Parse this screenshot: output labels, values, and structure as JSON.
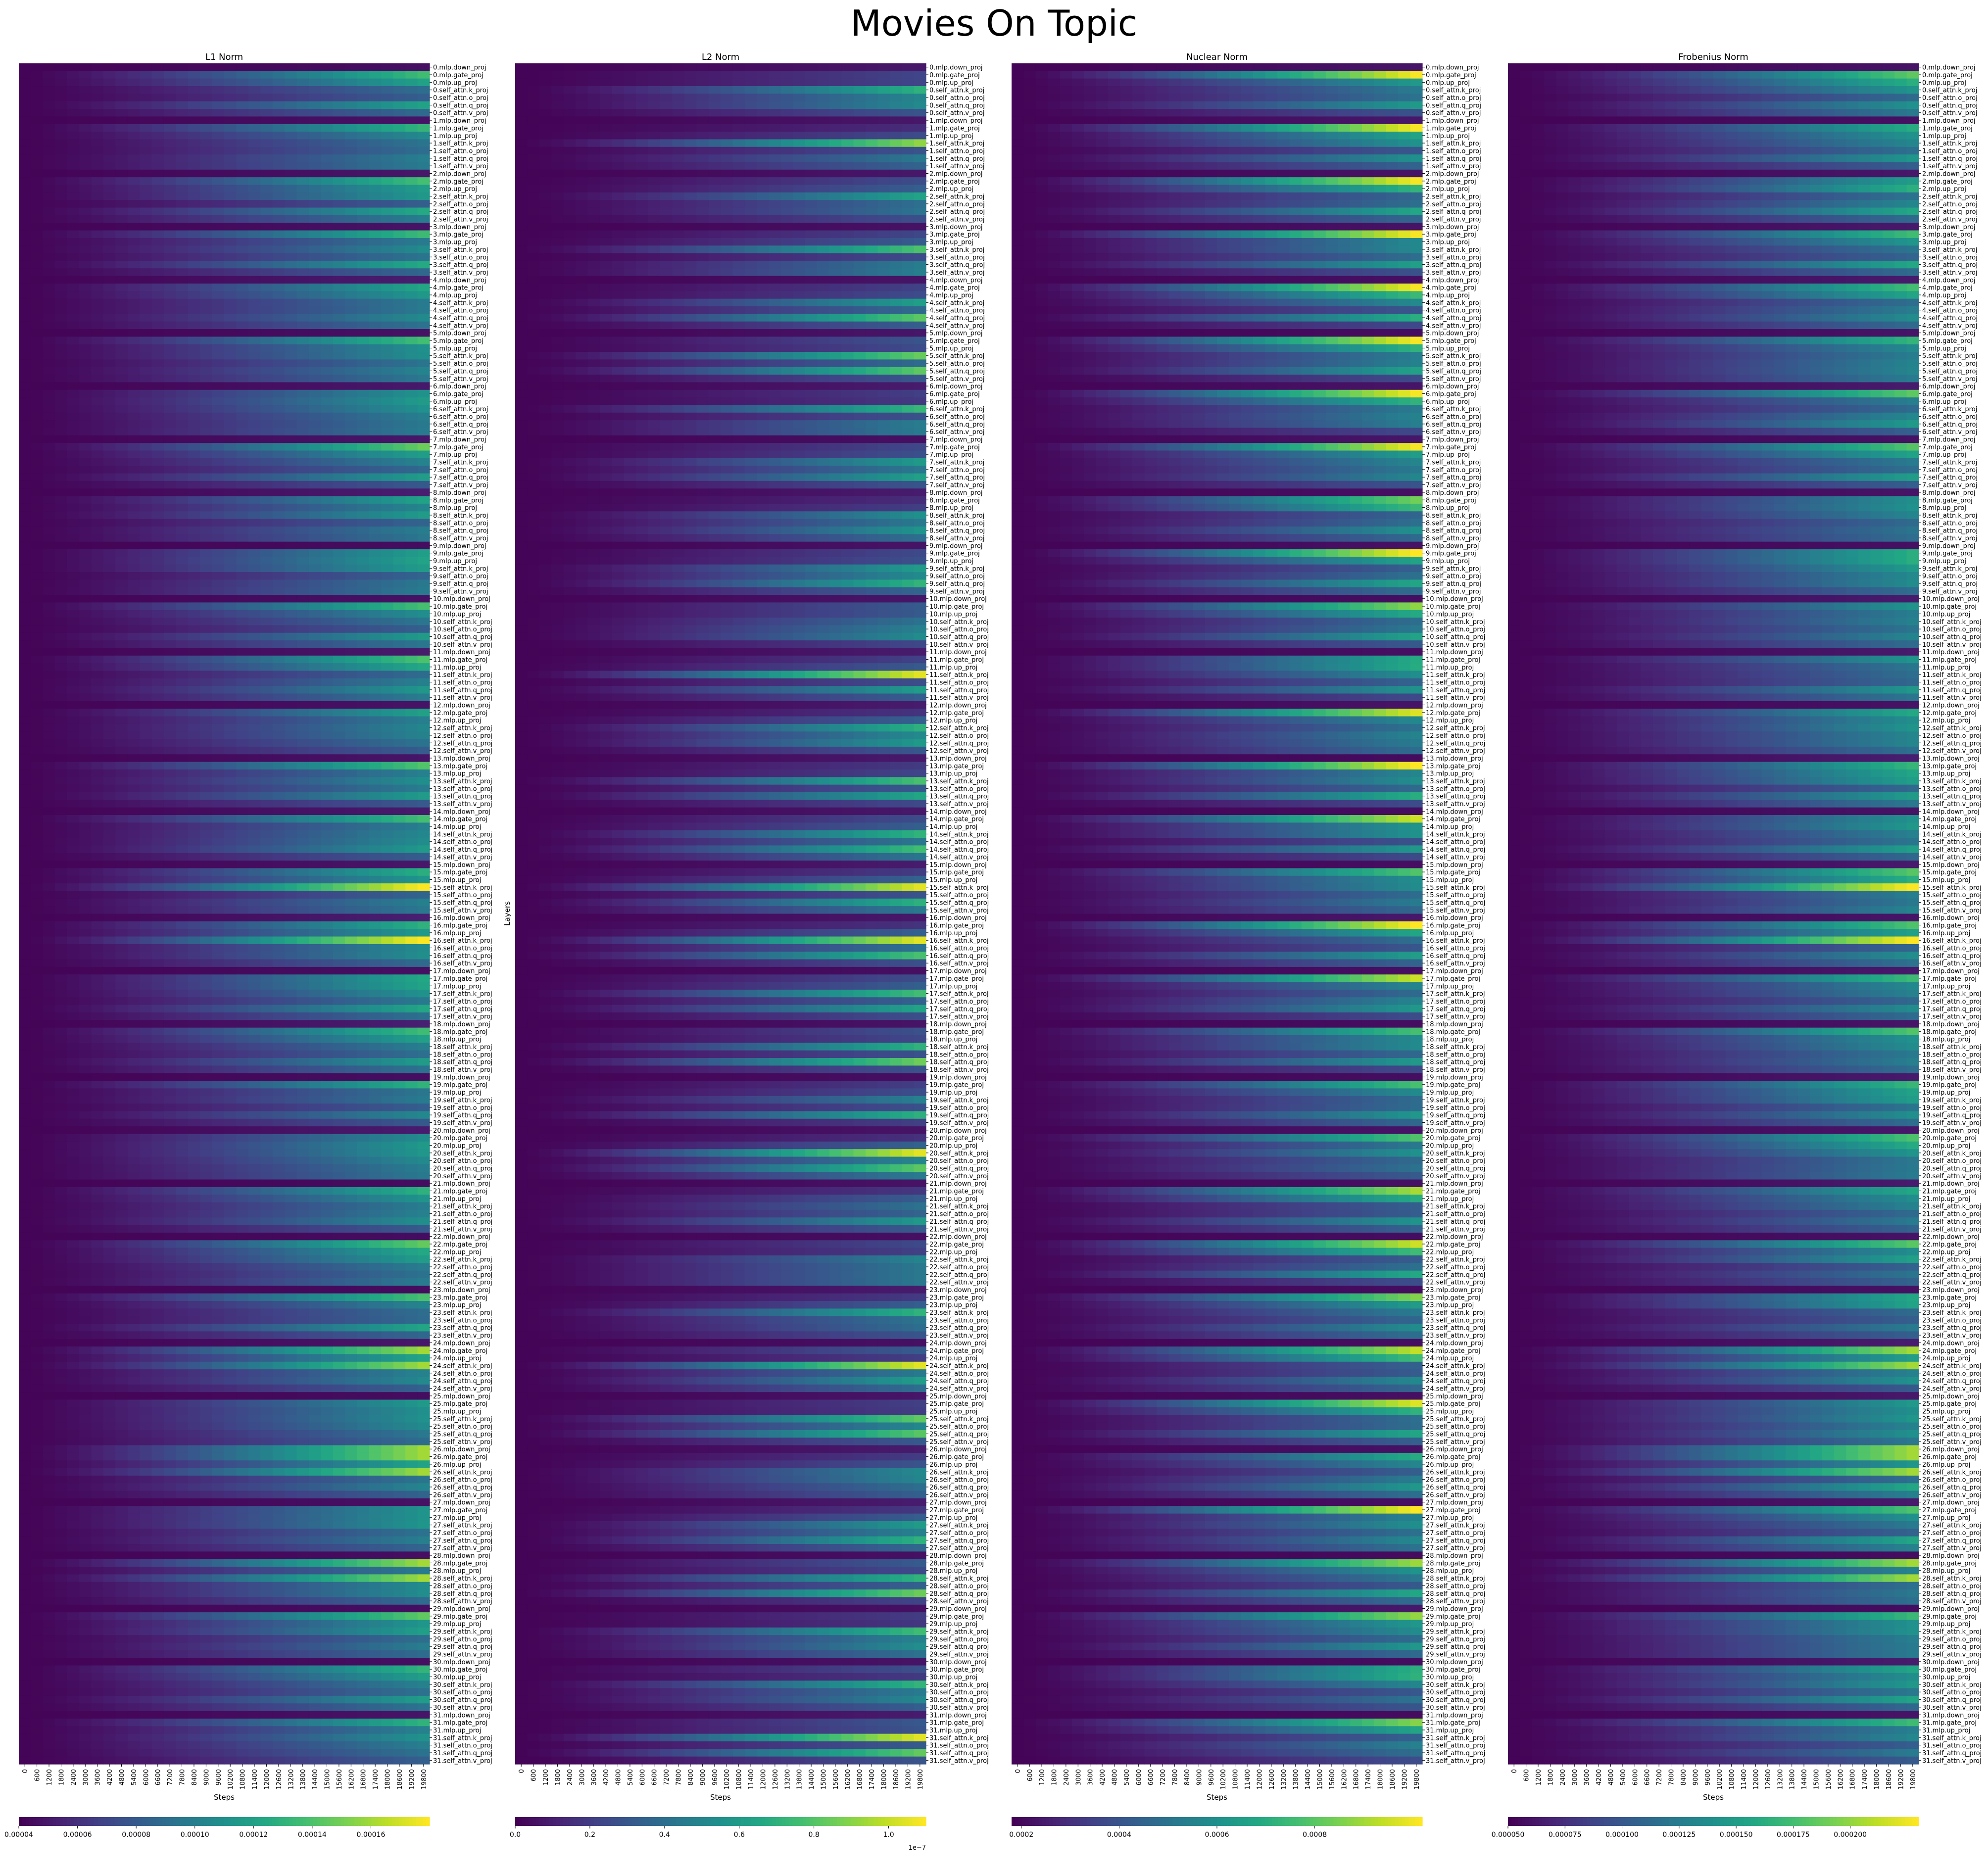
{
  "suptitle": "Movies On Topic",
  "chart_data": {
    "type": "heatmap",
    "ylabel": "Layers",
    "xlabel": "Steps",
    "colormap": "viridis",
    "x_ticks": [
      "0",
      "600",
      "1200",
      "1800",
      "2400",
      "3000",
      "3600",
      "4200",
      "4800",
      "5400",
      "6000",
      "6600",
      "7200",
      "7800",
      "8400",
      "9000",
      "9600",
      "10200",
      "10800",
      "11400",
      "12000",
      "12600",
      "13200",
      "13800",
      "14400",
      "15000",
      "15600",
      "16200",
      "16800",
      "17400",
      "18000",
      "18600",
      "19200",
      "19800"
    ],
    "layer_suffixes": [
      "mlp.down_proj",
      "mlp.gate_proj",
      "mlp.up_proj",
      "self_attn.k_proj",
      "self_attn.o_proj",
      "self_attn.q_proj",
      "self_attn.v_proj"
    ],
    "num_blocks": 32,
    "panels": [
      {
        "title": "L1 Norm",
        "colorbar_ticks": [
          "0.00004",
          "0.00006",
          "0.00008",
          "0.00010",
          "0.00012",
          "0.00014",
          "0.00016"
        ],
        "vmin": 4e-05,
        "vmax": 0.00018,
        "cb_tick_values": [
          4e-05,
          6e-05,
          8e-05,
          0.0001,
          0.00012,
          0.00014,
          0.00016
        ],
        "offset_text": ""
      },
      {
        "title": "L2 Norm",
        "colorbar_ticks": [
          "0.0",
          "0.2",
          "0.4",
          "0.6",
          "0.8",
          "1.0"
        ],
        "vmin": 0.0,
        "vmax": 1.1,
        "cb_tick_values": [
          0.0,
          0.2,
          0.4,
          0.6,
          0.8,
          1.0
        ],
        "offset_text": "1e−7"
      },
      {
        "title": "Nuclear Norm",
        "colorbar_ticks": [
          "0.0002",
          "0.0004",
          "0.0006",
          "0.0008"
        ],
        "vmin": 0.00018,
        "vmax": 0.00102,
        "cb_tick_values": [
          0.0002,
          0.0004,
          0.0006,
          0.0008
        ],
        "offset_text": ""
      },
      {
        "title": "Frobenius Norm",
        "colorbar_ticks": [
          "0.000050",
          "0.000075",
          "0.000100",
          "0.000125",
          "0.000150",
          "0.000175",
          "0.000200"
        ],
        "vmin": 5e-05,
        "vmax": 0.00023,
        "cb_tick_values": [
          5e-05,
          7.5e-05,
          0.0001,
          0.000125,
          0.00015,
          0.000175,
          0.0002
        ],
        "offset_text": ""
      }
    ]
  }
}
